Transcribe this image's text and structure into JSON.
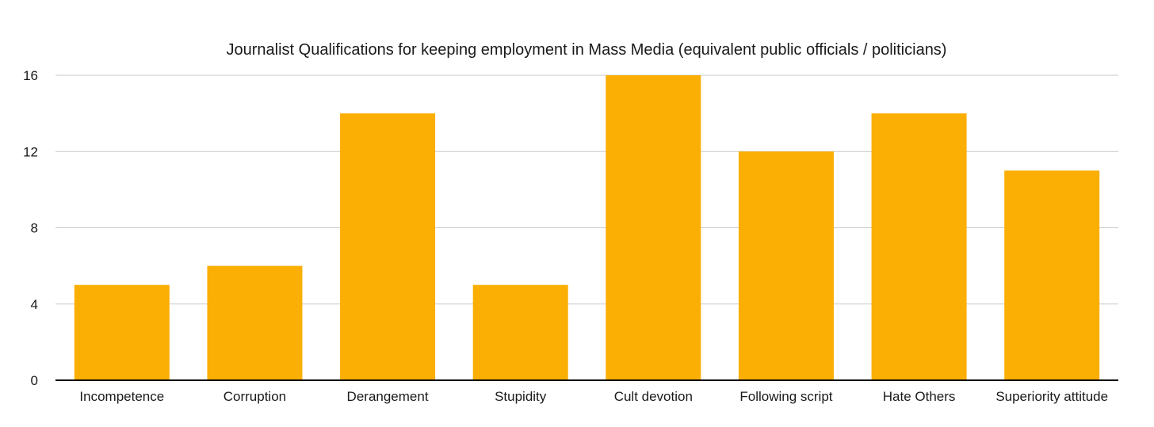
{
  "chart_data": {
    "type": "bar",
    "title": "Journalist Qualifications for keeping employment in Mass Media (equivalent public officials / politicians)",
    "xlabel": "",
    "ylabel": "",
    "categories": [
      "Incompetence",
      "Corruption",
      "Derangement",
      "Stupidity",
      "Cult devotion",
      "Following script",
      "Hate Others",
      "Superiority attitude"
    ],
    "values": [
      5,
      6,
      14,
      5,
      16,
      12,
      14,
      11
    ],
    "ylim": [
      0,
      16
    ],
    "yticks": [
      0,
      4,
      8,
      12,
      16
    ],
    "ytick_labels": [
      "0",
      "4",
      "8",
      "12",
      "16"
    ],
    "grid": true,
    "legend": "none",
    "colors": {
      "bar": "#FBAE04",
      "gridline": "#C9C9C9",
      "baseline": "#000000",
      "text": "#1A1A1A"
    }
  }
}
